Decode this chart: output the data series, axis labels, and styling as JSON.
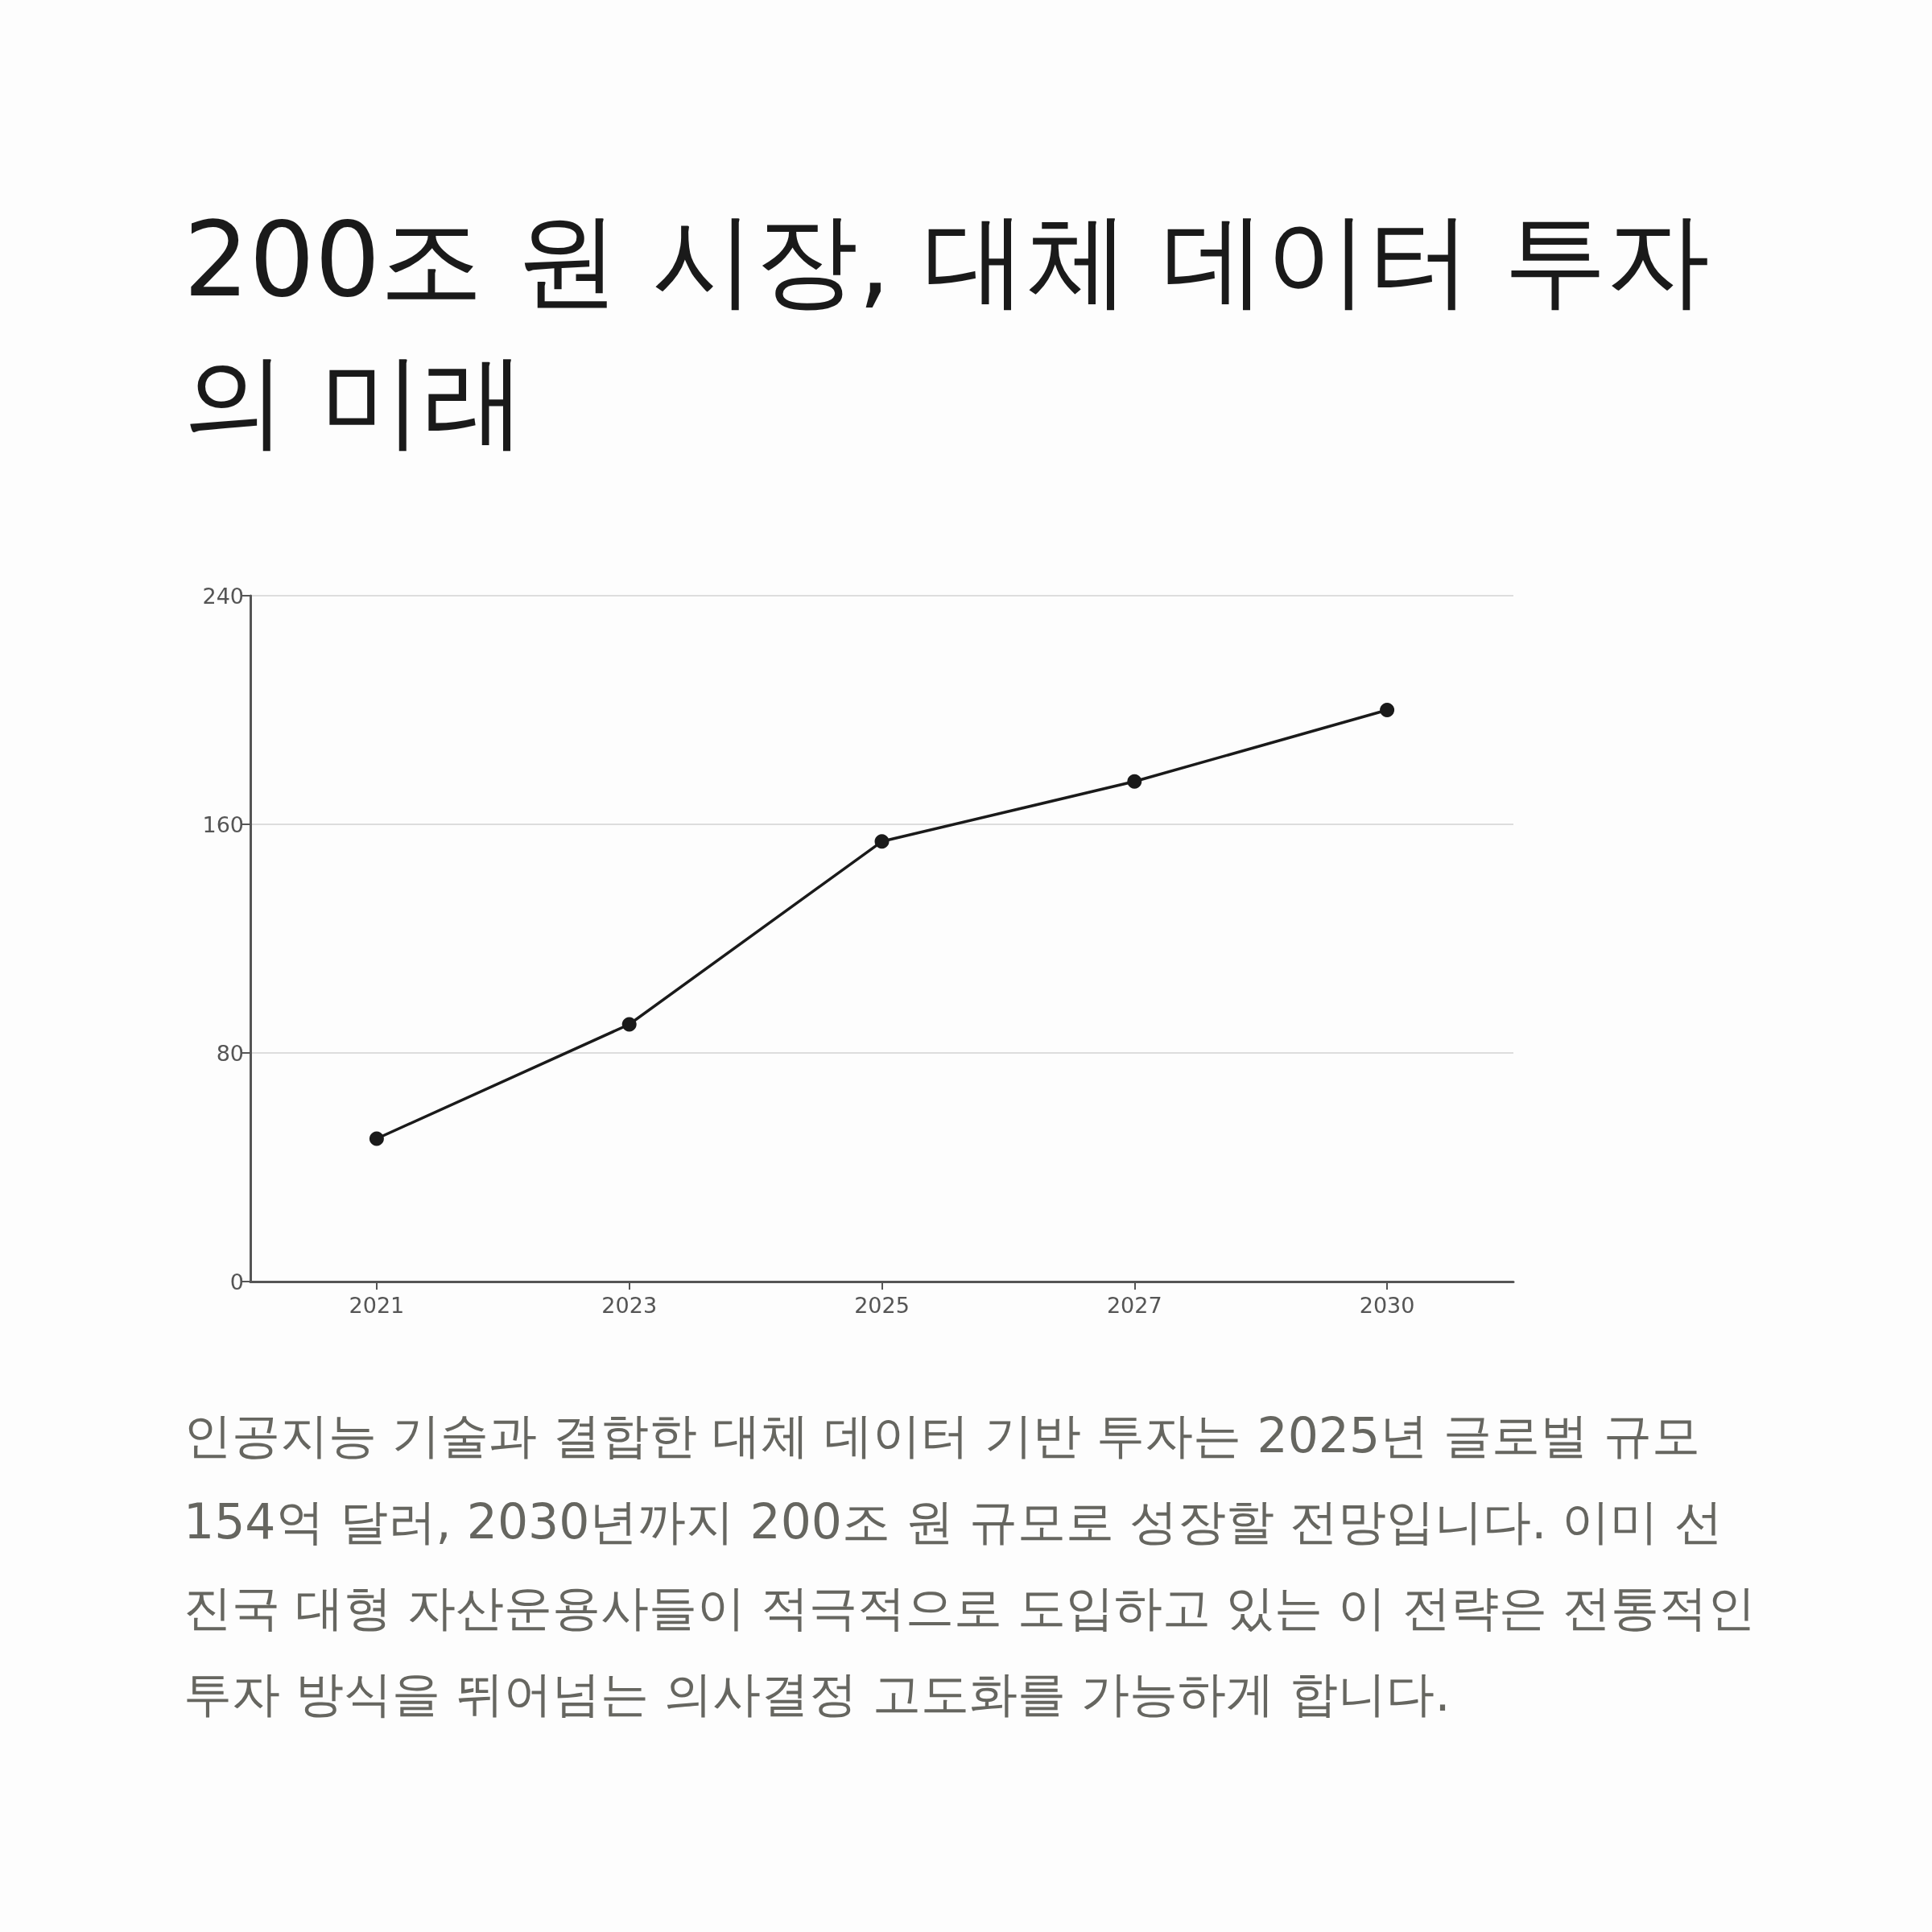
{
  "chart_data": {
    "type": "line",
    "title": "200조 원 시장, 대체 데이터 투자의 미래",
    "categories": [
      "2021",
      "2023",
      "2025",
      "2027",
      "2030"
    ],
    "series": [
      {
        "color": "#1a1a1a",
        "values": [
          50,
          90,
          154,
          175,
          200
        ]
      }
    ],
    "ylim": [
      0,
      240
    ],
    "yticks": [
      0,
      80,
      160,
      240
    ],
    "grid": "y",
    "marker": "circle",
    "line_style": "solid",
    "annotations": [
      "인공지능 기술과 결합한 대체 데이터 기반 투자는 2025년 글로벌 규모 154억 달러, 2030년까지 200조 원 규모로 성장할 전망입니다. 이미 선진국 대형 자산운용사들이 적극적으로 도입하고 있는 이 전략은 전통적인 투자 방식을 뛰어넘는 의사결정 고도화를 가능하게 합니다."
    ]
  }
}
